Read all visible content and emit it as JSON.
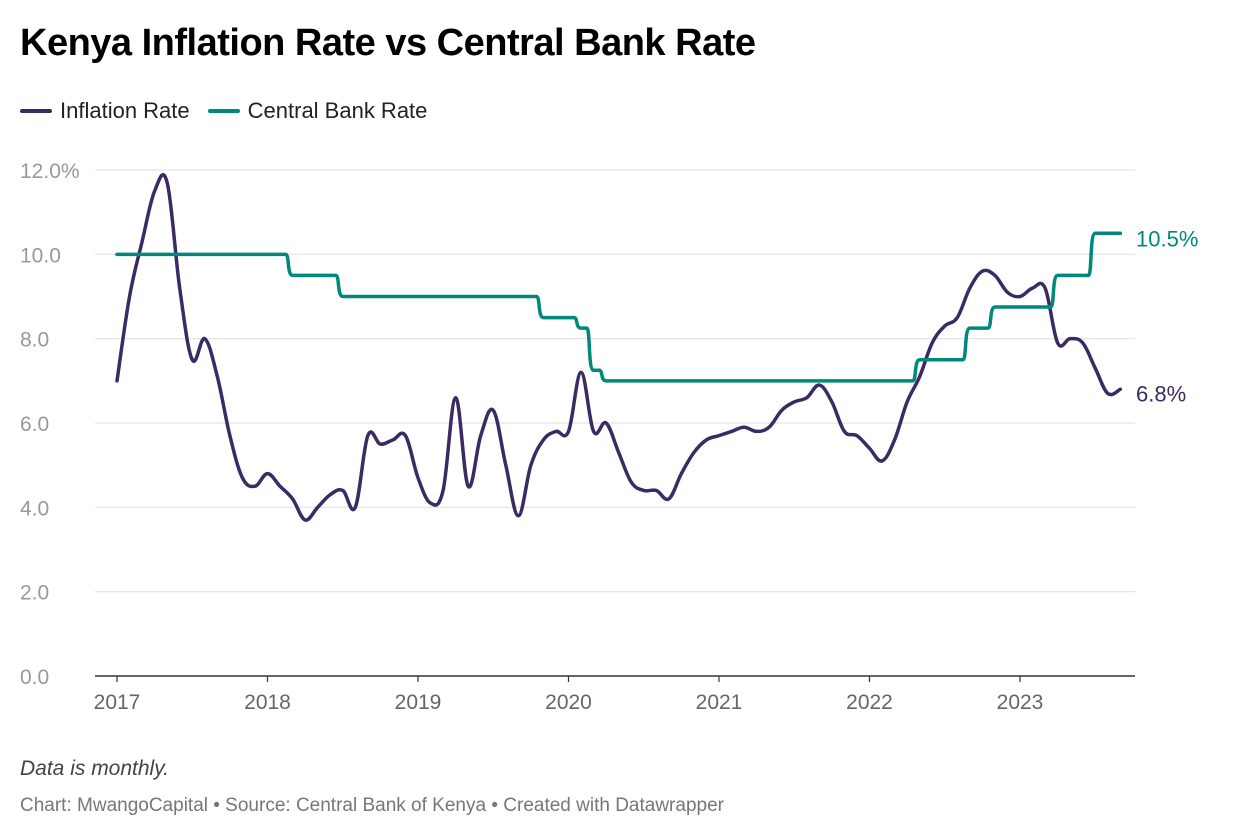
{
  "header": {
    "title": "Kenya Inflation Rate vs Central Bank Rate"
  },
  "notes": {
    "note": "Data is monthly.",
    "footer": "Chart: MwangoCapital • Source: Central Bank of Kenya • Created with Datawrapper"
  },
  "colors": {
    "inflation": "#3b2a63",
    "cbr": "#00897b",
    "grid": "#e3e3e3",
    "axis": "#333333"
  },
  "chart_data": {
    "type": "line",
    "title": "Kenya Inflation Rate vs Central Bank Rate",
    "xlabel": "",
    "ylabel": "",
    "ylim": [
      0,
      12
    ],
    "y_ticks": [
      "0.0",
      "2.0",
      "4.0",
      "6.0",
      "8.0",
      "10.0",
      "12.0%"
    ],
    "x_ticks": [
      "2017",
      "2018",
      "2019",
      "2020",
      "2021",
      "2022",
      "2023"
    ],
    "x_start": "2017-01",
    "grid": "horizontal",
    "legend_position": "top-left",
    "end_labels": [
      "10.5%",
      "6.8%"
    ],
    "series": [
      {
        "name": "Inflation Rate",
        "color": "#3b2a63",
        "values": [
          7.0,
          9.0,
          10.3,
          11.5,
          11.7,
          9.2,
          7.5,
          8.0,
          7.1,
          5.7,
          4.7,
          4.5,
          4.8,
          4.5,
          4.2,
          3.7,
          4.0,
          4.3,
          4.4,
          4.0,
          5.7,
          5.5,
          5.6,
          5.7,
          4.7,
          4.1,
          4.4,
          6.6,
          4.5,
          5.7,
          6.3,
          5.0,
          3.8,
          5.0,
          5.6,
          5.8,
          5.8,
          7.2,
          5.8,
          6.0,
          5.3,
          4.6,
          4.4,
          4.4,
          4.2,
          4.8,
          5.3,
          5.6,
          5.7,
          5.8,
          5.9,
          5.8,
          5.9,
          6.3,
          6.5,
          6.6,
          6.9,
          6.5,
          5.8,
          5.7,
          5.4,
          5.1,
          5.6,
          6.5,
          7.1,
          7.9,
          8.3,
          8.5,
          9.2,
          9.6,
          9.5,
          9.1,
          9.0,
          9.2,
          9.2,
          7.9,
          8.0,
          7.9,
          7.3,
          6.7,
          6.8
        ]
      },
      {
        "name": "Central Bank Rate",
        "color": "#00897b",
        "values": [
          10.0,
          10.0,
          10.0,
          10.0,
          10.0,
          10.0,
          10.0,
          10.0,
          10.0,
          10.0,
          10.0,
          10.0,
          10.0,
          10.0,
          9.5,
          9.5,
          9.5,
          9.5,
          9.0,
          9.0,
          9.0,
          9.0,
          9.0,
          9.0,
          9.0,
          9.0,
          9.0,
          9.0,
          9.0,
          9.0,
          9.0,
          9.0,
          9.0,
          9.0,
          8.5,
          8.5,
          8.5,
          8.25,
          7.25,
          7.0,
          7.0,
          7.0,
          7.0,
          7.0,
          7.0,
          7.0,
          7.0,
          7.0,
          7.0,
          7.0,
          7.0,
          7.0,
          7.0,
          7.0,
          7.0,
          7.0,
          7.0,
          7.0,
          7.0,
          7.0,
          7.0,
          7.0,
          7.0,
          7.0,
          7.5,
          7.5,
          7.5,
          7.5,
          8.25,
          8.25,
          8.75,
          8.75,
          8.75,
          8.75,
          8.75,
          9.5,
          9.5,
          9.5,
          10.5,
          10.5,
          10.5
        ]
      }
    ]
  }
}
